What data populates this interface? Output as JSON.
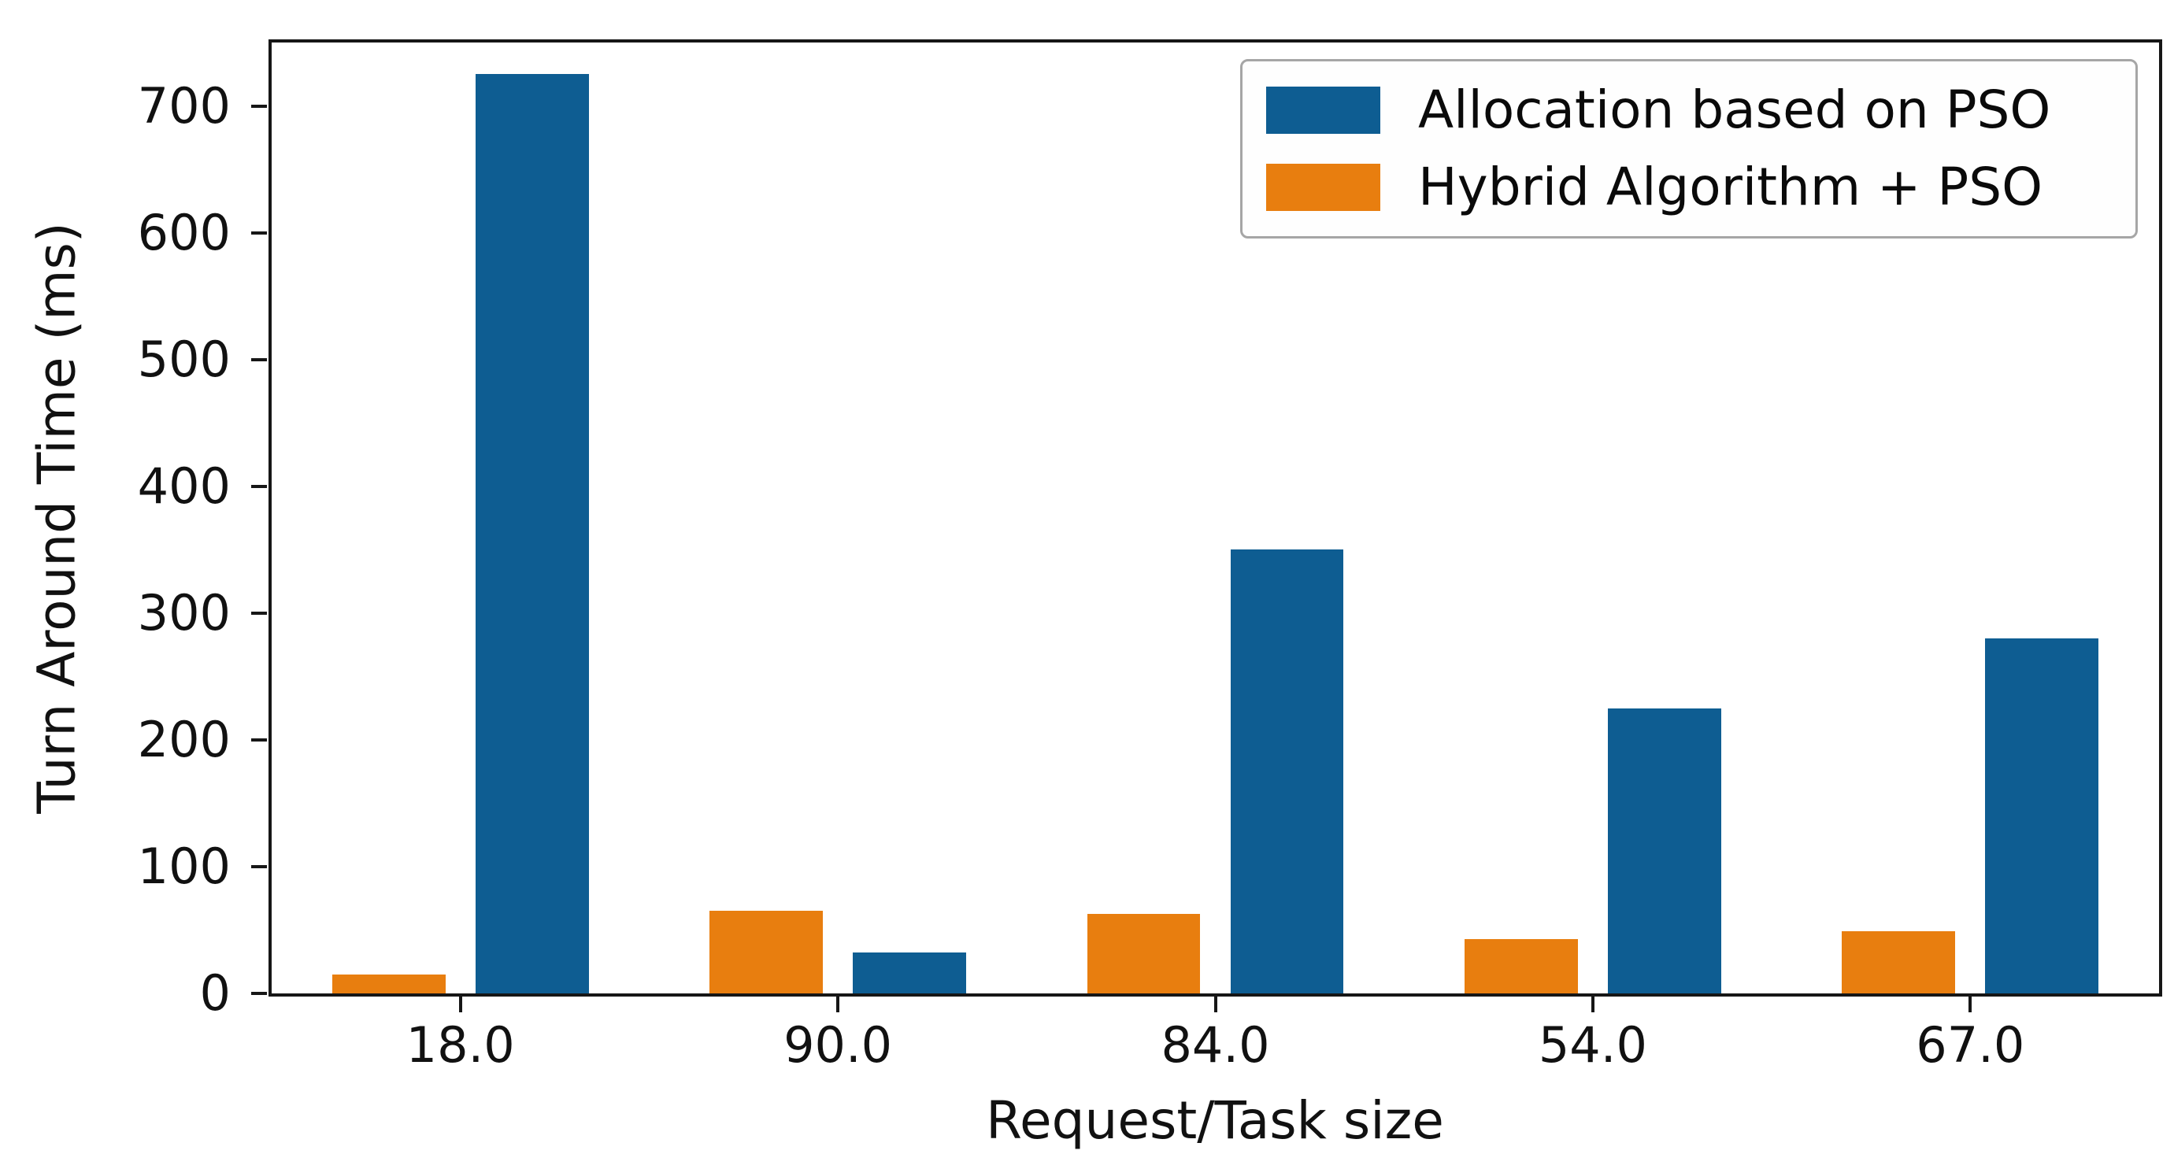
{
  "figure": {
    "background": "#ffffff",
    "text_color": "#111111",
    "spine_color": "#161616"
  },
  "chart_data": {
    "type": "bar",
    "title": "",
    "xlabel": "Request/Task size",
    "ylabel": "Turn Around Time (ms)",
    "categories": [
      "18.0",
      "90.0",
      "84.0",
      "54.0",
      "67.0"
    ],
    "series": [
      {
        "name": "Allocation based on PSO",
        "color": "#0e5d92",
        "values": [
          725,
          32,
          350,
          225,
          280
        ]
      },
      {
        "name": "Hybrid Algorithm + PSO",
        "color": "#e87e0f",
        "values": [
          15,
          65,
          63,
          43,
          49
        ]
      }
    ],
    "ylim": [
      0,
      750
    ],
    "yticks": [
      0,
      100,
      200,
      300,
      400,
      500,
      600,
      700
    ],
    "grid": false,
    "legend_position": "upper right"
  }
}
